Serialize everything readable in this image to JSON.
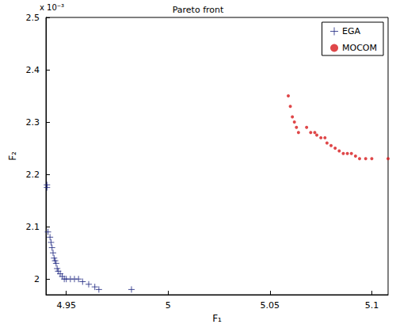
{
  "chart_data": {
    "type": "scatter",
    "title": "Pareto front",
    "x_label": "F₁",
    "y_label": "F₂",
    "annotations": [
      "x 10⁻³"
    ],
    "xlim": [
      4.94,
      5.108
    ],
    "xticks": [
      4.95,
      5,
      5.05,
      5.1
    ],
    "ylim": [
      0.00197,
      0.0025
    ],
    "yticks": [
      {
        "value": 0.002,
        "label": "2"
      },
      {
        "value": 0.0021,
        "label": "2.1"
      },
      {
        "value": 0.0022,
        "label": "2.2"
      },
      {
        "value": 0.0023,
        "label": "2.3"
      },
      {
        "value": 0.0024,
        "label": "2.4"
      },
      {
        "value": 0.0025,
        "label": "2.5"
      }
    ],
    "grid": false,
    "legend": "upper right",
    "series": [
      {
        "name": "EGA",
        "color": "#1a237e",
        "marker": "plus",
        "x": [
          4.9405,
          4.9405,
          4.941,
          4.942,
          4.9425,
          4.943,
          4.9435,
          4.944,
          4.9445,
          4.945,
          4.9455,
          4.946,
          4.947,
          4.948,
          4.949,
          4.95,
          4.952,
          4.954,
          4.956,
          4.958,
          4.961,
          4.964,
          4.966,
          4.982
        ],
        "values": [
          0.00218,
          0.002175,
          0.00209,
          0.00208,
          0.00207,
          0.00206,
          0.00205,
          0.00204,
          0.002035,
          0.00203,
          0.00202,
          0.002015,
          0.00201,
          0.002005,
          0.002,
          0.002,
          0.002,
          0.002,
          0.002,
          0.001995,
          0.00199,
          0.001985,
          0.00198,
          0.00198
        ]
      },
      {
        "name": "MOCOM",
        "color": "#d7191c",
        "marker": "dot",
        "x": [
          5.059,
          5.06,
          5.061,
          5.062,
          5.063,
          5.064,
          5.068,
          5.07,
          5.072,
          5.073,
          5.075,
          5.077,
          5.078,
          5.08,
          5.082,
          5.084,
          5.086,
          5.088,
          5.09,
          5.092,
          5.094,
          5.097,
          5.1,
          5.108
        ],
        "values": [
          0.00235,
          0.00233,
          0.00231,
          0.0023,
          0.00229,
          0.00228,
          0.00229,
          0.00228,
          0.00228,
          0.002275,
          0.00227,
          0.00227,
          0.00226,
          0.002255,
          0.00225,
          0.002245,
          0.00224,
          0.00224,
          0.00224,
          0.002235,
          0.00223,
          0.00223,
          0.00223,
          0.00223
        ]
      }
    ]
  }
}
